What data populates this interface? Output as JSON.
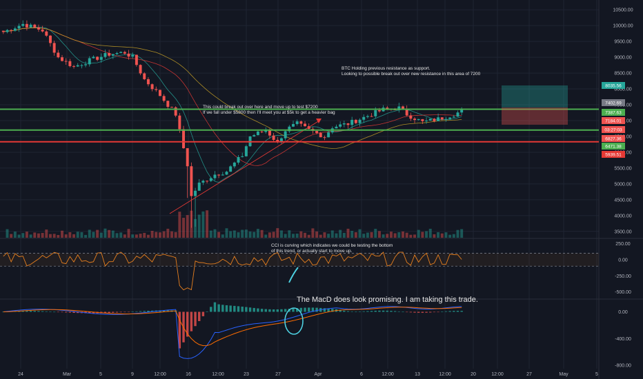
{
  "colors": {
    "background": "#131722",
    "grid": "#1f2433",
    "up": "#26a69a",
    "down": "#ef5350",
    "green_line": "#4caf50",
    "red_line": "#e53935",
    "cci": "#e8801f",
    "macd": "#2962ff",
    "signal": "#ff6d00",
    "axis_text": "#b2b5be"
  },
  "chart_data": [
    {
      "type": "candlestick",
      "title": "",
      "price_axis": {
        "ticks": [
          "10500.00",
          "10000.00",
          "9500.00",
          "9000.00",
          "8500.00",
          "8000.00",
          "7500.00",
          "7000.00",
          "6500.00",
          "6000.00",
          "5500.00",
          "5000.00",
          "4500.00",
          "4000.00",
          "3500.00"
        ],
        "ylim": [
          3300,
          10700
        ]
      },
      "x_ticks": [
        "24",
        "Mar",
        "5",
        "9",
        "12:00",
        "16",
        "12:00",
        "23",
        "27",
        "Apr",
        "6",
        "12:00",
        "13",
        "12:00",
        "20",
        "12:00",
        "27",
        "May",
        "5"
      ],
      "price_labels": [
        {
          "text": "8035.56",
          "color": "#26a69a"
        },
        {
          "text": "7402.69",
          "color": "#787b86"
        },
        {
          "text": "7387.63",
          "color": "#4caf50"
        },
        {
          "text": "7184.01",
          "color": "#ef5350"
        },
        {
          "text": "03:27:03",
          "color": "#ef5350"
        },
        {
          "text": "6827.36",
          "color": "#ef5350"
        },
        {
          "text": "6471.38",
          "color": "#4caf50"
        },
        {
          "text": "5939.51",
          "color": "#e53935"
        }
      ],
      "horizontal_levels": [
        {
          "price": 7360,
          "color": "green"
        },
        {
          "price": 6700,
          "color": "green"
        },
        {
          "price": 6330,
          "color": "red"
        }
      ],
      "price_path": [
        [
          0,
          9800
        ],
        [
          5,
          10050
        ],
        [
          10,
          9850
        ],
        [
          14,
          9000
        ],
        [
          18,
          8700
        ],
        [
          22,
          8900
        ],
        [
          27,
          9100
        ],
        [
          31,
          9150
        ],
        [
          33,
          9000
        ],
        [
          36,
          8300
        ],
        [
          40,
          7800
        ],
        [
          44,
          7200
        ],
        [
          47,
          5600
        ],
        [
          48,
          4600
        ],
        [
          50,
          5000
        ],
        [
          54,
          5300
        ],
        [
          57,
          5400
        ],
        [
          61,
          5900
        ],
        [
          63,
          6500
        ],
        [
          67,
          6700
        ],
        [
          70,
          6300
        ],
        [
          72,
          6700
        ],
        [
          75,
          6900
        ],
        [
          78,
          6700
        ],
        [
          82,
          6500
        ],
        [
          84,
          6800
        ],
        [
          88,
          6900
        ],
        [
          93,
          7150
        ],
        [
          97,
          7350
        ],
        [
          101,
          7400
        ],
        [
          103,
          7200
        ],
        [
          107,
          6950
        ],
        [
          111,
          7050
        ],
        [
          115,
          7200
        ],
        [
          117,
          7300
        ]
      ]
    },
    {
      "type": "line",
      "indicator": "CCI",
      "yticks": [
        "250.00",
        "0.00",
        "-250.00",
        "-500.00"
      ],
      "ylim": [
        -600,
        320
      ]
    },
    {
      "type": "bar",
      "indicator": "MACD",
      "yticks": [
        "0.00",
        "-400.00",
        "-800.00"
      ],
      "ylim": [
        -850,
        170
      ]
    }
  ],
  "chart_data_annotations": {},
  "chart_data_note": "",
  "chart_data_extra": {},
  "chart_data_text": {},
  "chart_data_labels": {},
  "chart_data_misc": {},
  "chart_data_anno": {},
  "chart_data_2": {},
  "chart_data_3": {},
  "chart_data_4": {},
  "chart_data_5": {},
  "chart_data_6": {},
  "chart_data_7": {},
  "chart_data_8": {},
  "chart_data_9": {},
  "chart_data_10": {}
}
